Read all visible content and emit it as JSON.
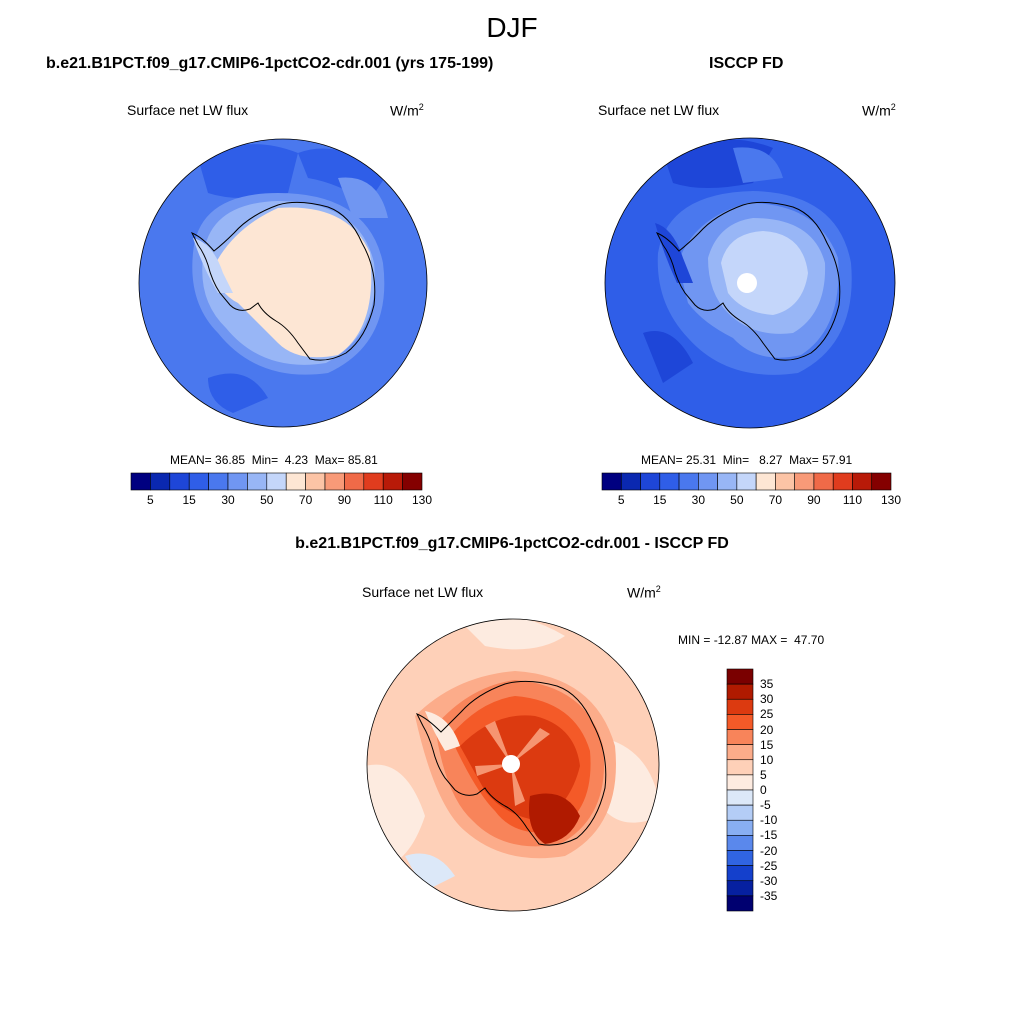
{
  "figure": {
    "title": "DJF"
  },
  "chart_data": [
    {
      "type": "heatmap",
      "projection": "south-polar-stereographic",
      "title": "b.e21.B1PCT.f09_g17.CMIP6-1pctCO2-cdr.001 (yrs 175-199)",
      "variable": "Surface net LW flux",
      "units_base": "W/m",
      "units_exp": "2",
      "stats": {
        "mean_label": "MEAN=",
        "mean": "36.85",
        "min_label": "Min=",
        "min": "4.23",
        "max_label": "Max=",
        "max": "85.81"
      },
      "colorbar": {
        "orientation": "horizontal",
        "levels": [
          5,
          10,
          15,
          20,
          30,
          40,
          50,
          60,
          70,
          80,
          90,
          100,
          110,
          120,
          130
        ],
        "tick_labels": [
          "5",
          "15",
          "30",
          "50",
          "70",
          "90",
          "110",
          "130"
        ],
        "colors": [
          "#000080",
          "#0a28b0",
          "#1e46d8",
          "#2f5ee8",
          "#4a78ee",
          "#7096f2",
          "#98b6f6",
          "#c4d6fa",
          "#fde6d4",
          "#fcc4a6",
          "#f89a78",
          "#f06a48",
          "#e03c1e",
          "#b81a08",
          "#840000"
        ]
      }
    },
    {
      "type": "heatmap",
      "projection": "south-polar-stereographic",
      "title": "ISCCP FD",
      "variable": "Surface net LW flux",
      "units_base": "W/m",
      "units_exp": "2",
      "stats": {
        "mean_label": "MEAN=",
        "mean": "25.31",
        "min_label": "Min=",
        "min": "8.27",
        "max_label": "Max=",
        "max": "57.91"
      },
      "colorbar": {
        "orientation": "horizontal",
        "levels": [
          5,
          10,
          15,
          20,
          30,
          40,
          50,
          60,
          70,
          80,
          90,
          100,
          110,
          120,
          130
        ],
        "tick_labels": [
          "5",
          "15",
          "30",
          "50",
          "70",
          "90",
          "110",
          "130"
        ],
        "colors": [
          "#000080",
          "#0a28b0",
          "#1e46d8",
          "#2f5ee8",
          "#4a78ee",
          "#7096f2",
          "#98b6f6",
          "#c4d6fa",
          "#fde6d4",
          "#fcc4a6",
          "#f89a78",
          "#f06a48",
          "#e03c1e",
          "#b81a08",
          "#840000"
        ]
      }
    },
    {
      "type": "heatmap",
      "projection": "south-polar-stereographic",
      "title": "b.e21.B1PCT.f09_g17.CMIP6-1pctCO2-cdr.001 - ISCCP FD",
      "variable": "Surface net LW flux",
      "units_base": "W/m",
      "units_exp": "2",
      "stats": {
        "min_label": "MIN =",
        "min": "-12.87",
        "max_label": "MAX =",
        "max": "47.70"
      },
      "colorbar": {
        "orientation": "vertical",
        "tick_labels": [
          "35",
          "30",
          "25",
          "20",
          "15",
          "10",
          "5",
          "0",
          "-5",
          "-10",
          "-15",
          "-20",
          "-25",
          "-30",
          "-35"
        ],
        "colors": [
          "#7a0000",
          "#b01a00",
          "#dc3a10",
          "#f45a28",
          "#f8845a",
          "#fcac8a",
          "#fed0b8",
          "#fdebe0",
          "#dce8f8",
          "#b4cdf6",
          "#88aef2",
          "#5a88ec",
          "#3064e2",
          "#1440cc",
          "#0620a0",
          "#000070"
        ]
      }
    }
  ]
}
